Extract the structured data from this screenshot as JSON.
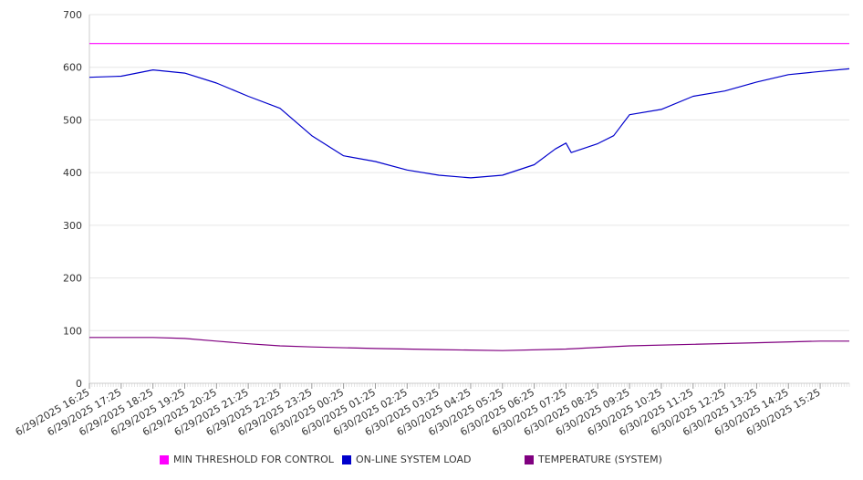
{
  "chart_data": {
    "type": "line",
    "ylim": [
      0,
      700
    ],
    "yticks": [
      0,
      100,
      200,
      300,
      400,
      500,
      600,
      700
    ],
    "x_tick_labels": [
      "6/29/2025 16:25",
      "6/29/2025 17:25",
      "6/29/2025 18:25",
      "6/29/2025 19:25",
      "6/29/2025 20:25",
      "6/29/2025 21:25",
      "6/29/2025 22:25",
      "6/29/2025 23:25",
      "6/30/2025 00:25",
      "6/30/2025 01:25",
      "6/30/2025 02:25",
      "6/30/2025 03:25",
      "6/30/2025 04:25",
      "6/30/2025 05:25",
      "6/30/2025 06:25",
      "6/30/2025 07:25",
      "6/30/2025 08:25",
      "6/30/2025 09:25",
      "6/30/2025 10:25",
      "6/30/2025 11:25",
      "6/30/2025 12:25",
      "6/30/2025 13:25",
      "6/30/2025 14:25",
      "6/30/2025 15:25"
    ],
    "x_start": "6/29/2025 16:25",
    "x_end": "6/30/2025 16:20",
    "grid": true,
    "legend_position": "bottom",
    "series": [
      {
        "name": "MIN THRESHOLD FOR CONTROL",
        "color": "#ff00ff",
        "x": [
          "6/29/2025 16:25",
          "6/30/2025 16:20"
        ],
        "values": [
          645,
          645
        ]
      },
      {
        "name": "ON-LINE SYSTEM LOAD",
        "color": "#0000cc",
        "x": [
          "6/29/2025 16:25",
          "6/29/2025 17:25",
          "6/29/2025 18:25",
          "6/29/2025 19:25",
          "6/29/2025 20:25",
          "6/29/2025 21:25",
          "6/29/2025 22:25",
          "6/29/2025 23:25",
          "6/30/2025 00:25",
          "6/30/2025 01:25",
          "6/30/2025 02:25",
          "6/30/2025 03:25",
          "6/30/2025 04:25",
          "6/30/2025 05:25",
          "6/30/2025 06:25",
          "6/30/2025 07:05",
          "6/30/2025 07:25",
          "6/30/2025 07:35",
          "6/30/2025 08:25",
          "6/30/2025 08:55",
          "6/30/2025 09:25",
          "6/30/2025 10:25",
          "6/30/2025 11:25",
          "6/30/2025 12:25",
          "6/30/2025 13:25",
          "6/30/2025 14:25",
          "6/30/2025 15:25",
          "6/30/2025 16:20"
        ],
        "values": [
          581,
          583,
          595,
          589,
          570,
          545,
          522,
          470,
          432,
          421,
          405,
          395,
          390,
          395,
          415,
          445,
          456,
          438,
          455,
          470,
          510,
          520,
          545,
          555,
          572,
          586,
          592,
          597
        ]
      },
      {
        "name": "TEMPERATURE (SYSTEM)",
        "color": "#800080",
        "x": [
          "6/29/2025 16:25",
          "6/29/2025 18:25",
          "6/29/2025 19:25",
          "6/29/2025 20:25",
          "6/29/2025 21:25",
          "6/29/2025 22:25",
          "6/29/2025 23:25",
          "6/30/2025 01:25",
          "6/30/2025 03:25",
          "6/30/2025 05:25",
          "6/30/2025 07:25",
          "6/30/2025 09:25",
          "6/30/2025 11:25",
          "6/30/2025 13:25",
          "6/30/2025 15:25",
          "6/30/2025 16:20"
        ],
        "values": [
          87,
          87,
          85,
          80,
          75,
          71,
          69,
          66,
          64,
          62,
          65,
          71,
          74,
          77,
          80,
          80
        ]
      }
    ]
  }
}
